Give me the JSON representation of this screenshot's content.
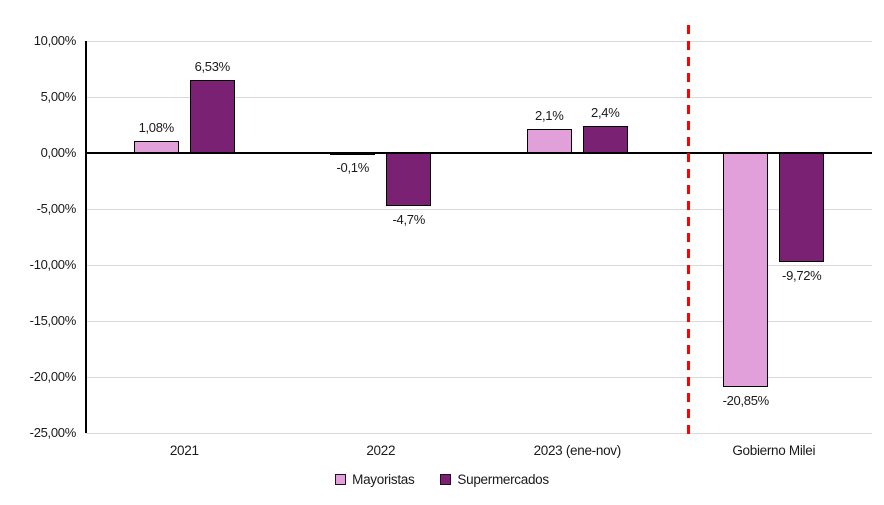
{
  "chart_data": {
    "type": "bar",
    "title": "",
    "categories": [
      "2021",
      "2022",
      "2023 (ene-nov)",
      "Gobierno Milei"
    ],
    "series": [
      {
        "name": "Mayoristas",
        "color": "#E2A0DB",
        "border_color": "#000000",
        "values": [
          1.08,
          -0.1,
          2.1,
          -20.85
        ],
        "data_labels": [
          "1,08%",
          "-0,1%",
          "2,1%",
          "-20,85%"
        ]
      },
      {
        "name": "Supermercados",
        "color": "#7B2173",
        "border_color": "#000000",
        "values": [
          6.53,
          -4.7,
          2.4,
          -9.72
        ],
        "data_labels": [
          "6,53%",
          "-4,7%",
          "2,4%",
          "-9,72%"
        ]
      }
    ],
    "y_axis": {
      "min": -25,
      "max": 10,
      "step": 5,
      "tick_labels": [
        "10,00%",
        "5,00%",
        "0,00%",
        "-5,00%",
        "-10,00%",
        "-15,00%",
        "-20,00%",
        "-25,00%"
      ],
      "unit": "percent"
    },
    "x_axis": {
      "labels": [
        "2021",
        "2022",
        "2023 (ene-nov)",
        "Gobierno Milei"
      ]
    },
    "grid": true,
    "gridline_color": "#D9D9D9",
    "axis_color": "#000000",
    "legend_position": "bottom",
    "annotations": [
      {
        "type": "vline",
        "color": "#FF0000",
        "style": "dashed",
        "between_categories": [
          "2023 (ene-nov)",
          "Gobierno Milei"
        ]
      }
    ]
  },
  "legend": {
    "items": [
      {
        "label": "Mayoristas",
        "swatch_color": "#E2A0DB"
      },
      {
        "label": "Supermercados",
        "swatch_color": "#7B2173"
      }
    ]
  }
}
